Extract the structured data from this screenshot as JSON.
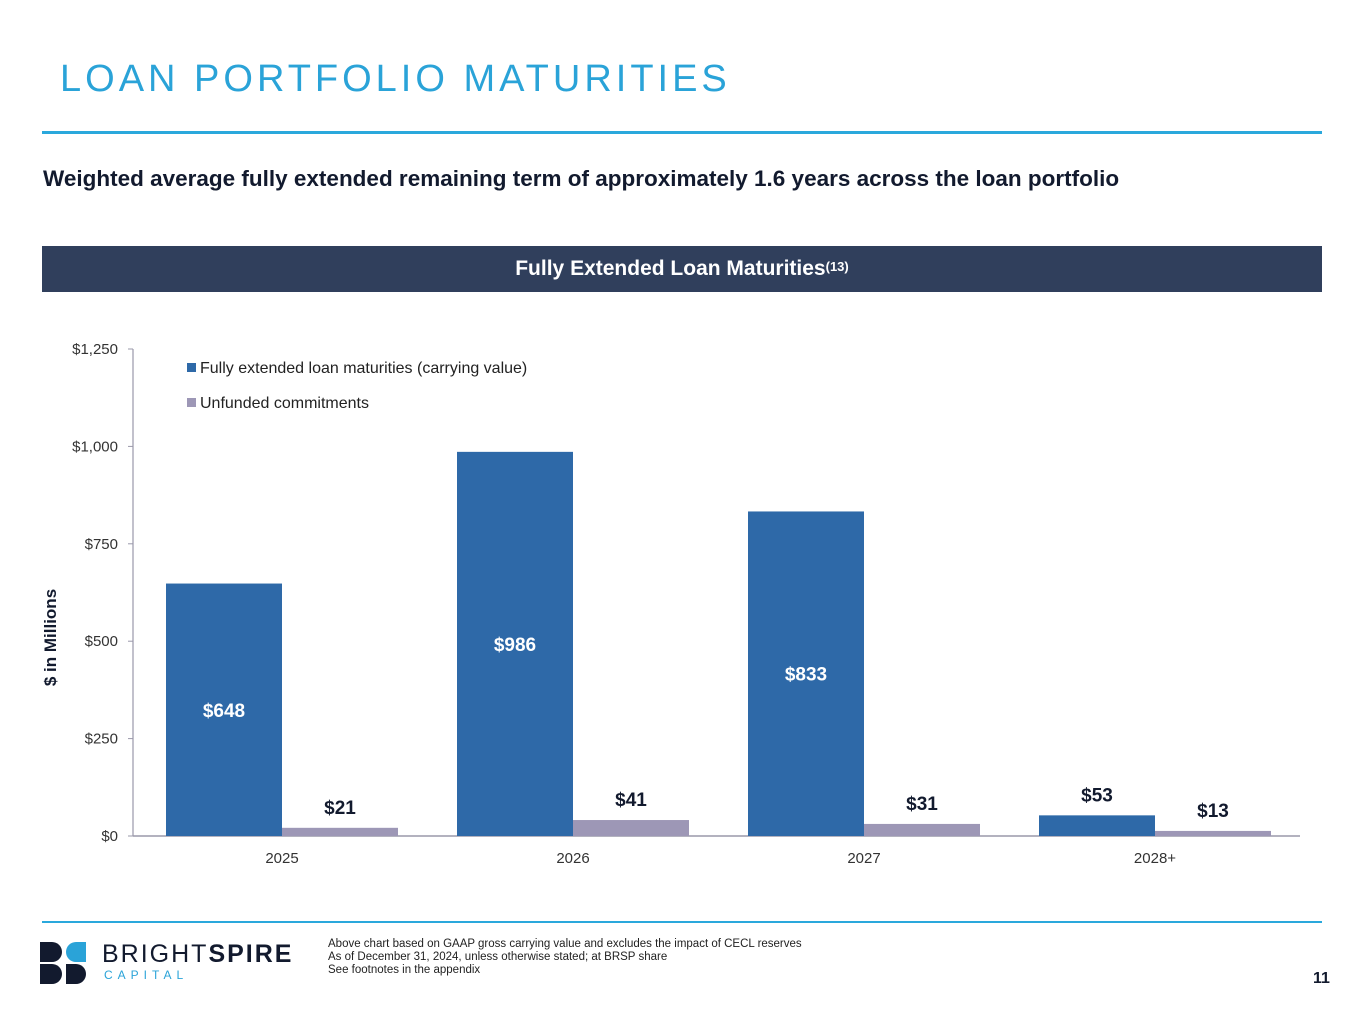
{
  "page": {
    "title": "LOAN PORTFOLIO MATURITIES",
    "subtitle": "Weighted average fully extended remaining term of approximately 1.6 years across the loan portfolio",
    "banner_title": "Fully Extended Loan Maturities",
    "banner_superscript": "(13)",
    "page_number": "11"
  },
  "logo": {
    "word_light": "BRIGHT",
    "word_bold": "SPIRE",
    "sub": "CAPITAL",
    "colors": {
      "dark": "#121a2e",
      "accent": "#2aa3d8"
    }
  },
  "footnotes": [
    "Above chart based on GAAP gross carrying value and excludes the impact of CECL reserves",
    "As of December 31, 2024, unless otherwise stated; at BRSP share",
    "See footnotes in the appendix"
  ],
  "colors": {
    "title": "#2aa3d8",
    "banner_bg": "#303f5c",
    "series_1": "#2e69a8",
    "series_2": "#9d97b6"
  },
  "chart_data": {
    "type": "bar",
    "title": "Fully Extended Loan Maturities(13)",
    "xlabel": "",
    "ylabel": "$ in Millions",
    "ylim": [
      0,
      1250
    ],
    "yticks": [
      0,
      250,
      500,
      750,
      1000,
      1250
    ],
    "ytick_labels": [
      "$0",
      "$250",
      "$500",
      "$750",
      "$1,000",
      "$1,250"
    ],
    "categories": [
      "2025",
      "2026",
      "2027",
      "2028+"
    ],
    "grid": false,
    "legend_position": "top-left",
    "series": [
      {
        "name": "Fully extended loan maturities (carrying value)",
        "values": [
          648,
          986,
          833,
          53
        ],
        "labels": [
          "$648",
          "$986",
          "$833",
          "$53"
        ],
        "color": "#2e69a8"
      },
      {
        "name": "Unfunded commitments",
        "values": [
          21,
          41,
          31,
          13
        ],
        "labels": [
          "$21",
          "$41",
          "$31",
          "$13"
        ],
        "color": "#9d97b6"
      }
    ]
  }
}
